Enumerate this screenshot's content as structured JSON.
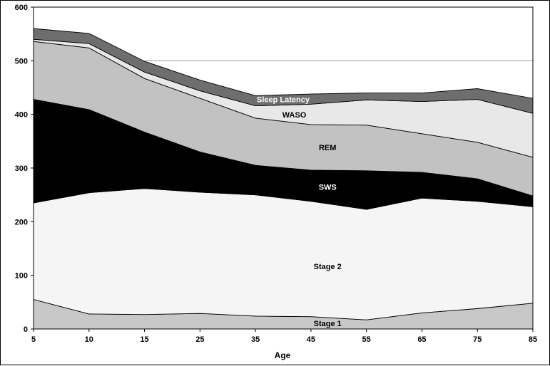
{
  "chart_data": {
    "type": "area",
    "stacked": true,
    "title": "",
    "xlabel": "Age",
    "ylabel": "",
    "x": [
      5,
      10,
      15,
      25,
      35,
      45,
      55,
      65,
      75,
      85
    ],
    "x_tick_labels": [
      "5",
      "10",
      "15",
      "25",
      "35",
      "45",
      "55",
      "65",
      "75",
      "85"
    ],
    "ylim": [
      0,
      600
    ],
    "y_ticks": [
      0,
      100,
      200,
      300,
      400,
      500,
      600
    ],
    "grid": "horizontal line at 500 only",
    "legend": "none (series labelled inside areas)",
    "series": [
      {
        "name": "Stage 1",
        "color": "#c8c8c8",
        "label_color": "#000000",
        "values": [
          55,
          28,
          27,
          29,
          24,
          23,
          17,
          30,
          38,
          48
        ]
      },
      {
        "name": "Stage 2",
        "color": "#f5f5f5",
        "label_color": "#000000",
        "values": [
          180,
          226,
          235,
          226,
          226,
          215,
          206,
          214,
          200,
          180
        ]
      },
      {
        "name": "SWS",
        "color": "#000000",
        "label_color": "#ffffff",
        "values": [
          193,
          155,
          105,
          75,
          55,
          58,
          72,
          48,
          42,
          20
        ]
      },
      {
        "name": "REM",
        "color": "#c2c2c2",
        "label_color": "#000000",
        "values": [
          108,
          115,
          100,
          100,
          88,
          85,
          85,
          72,
          68,
          72
        ]
      },
      {
        "name": "WASO",
        "color": "#e8e8e8",
        "label_color": "#000000",
        "values": [
          4,
          8,
          12,
          14,
          23,
          38,
          47,
          60,
          80,
          82
        ]
      },
      {
        "name": "Sleep Latency",
        "color": "#6e6e6e",
        "label_color": "#ffffff",
        "values": [
          20,
          19,
          20,
          20,
          19,
          19,
          13,
          16,
          20,
          28
        ]
      }
    ]
  }
}
